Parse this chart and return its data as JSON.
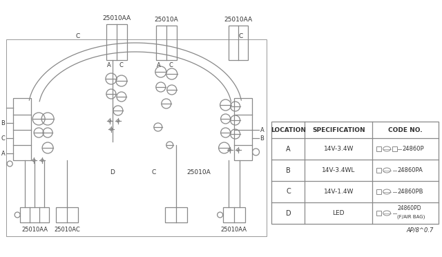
{
  "bg_color": "#ffffff",
  "line_color": "#888888",
  "text_color": "#333333",
  "watermark": "AP/8^0.7",
  "table": {
    "headers": [
      "LOCATION",
      "SPECIFICATION",
      "CODE NO."
    ],
    "rows": [
      [
        "A",
        "14V-3.4W",
        "24860P",
        true
      ],
      [
        "B",
        "14V-3.4WL",
        "24860PA",
        false
      ],
      [
        "C",
        "14V-1.4W",
        "24860PB",
        false
      ],
      [
        "D",
        "LED",
        "24860PD",
        false
      ]
    ],
    "row_d_sub": "(F/AIR BAG)"
  },
  "labels": {
    "top_left_conn": "25010AA",
    "top_center_conn": "25010A",
    "bot_left_conn": "25010AA",
    "bot_left2_conn": "25010AC",
    "bot_center_conn": "25010A",
    "bot_right_conn": "25010AA"
  }
}
